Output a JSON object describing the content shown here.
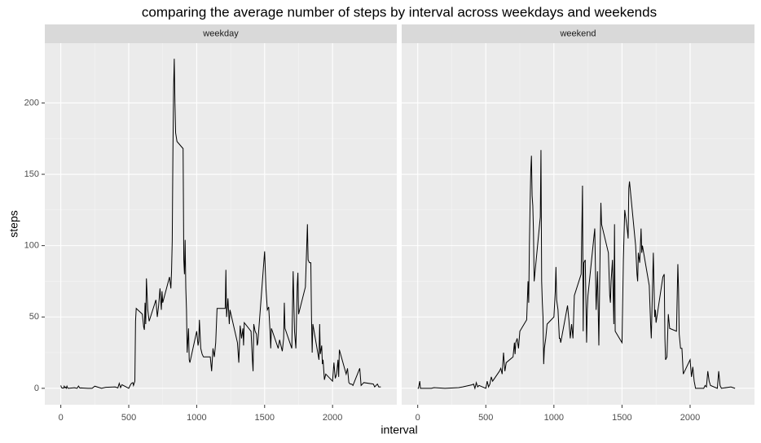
{
  "chart_data": {
    "type": "line",
    "title": "comparing the average number of steps by interval across weekdays and weekends",
    "x_label": "interval",
    "y_label": "steps",
    "xlim": [
      -117.75,
      2472.75
    ],
    "ylim": [
      -11.5,
      241.9
    ],
    "xticks": [
      0,
      500,
      1000,
      1500,
      2000
    ],
    "yticks": [
      0,
      50,
      100,
      150,
      200
    ],
    "grid": true,
    "color": "#000000",
    "series": [
      {
        "name": "weekday",
        "x": [
          0,
          5,
          10,
          15,
          20,
          25,
          30,
          35,
          40,
          45,
          50,
          55,
          100,
          110,
          120,
          130,
          140,
          150,
          200,
          230,
          250,
          300,
          330,
          400,
          420,
          430,
          440,
          450,
          500,
          510,
          520,
          530,
          535,
          545,
          550,
          555,
          600,
          610,
          615,
          620,
          625,
          630,
          640,
          650,
          700,
          710,
          720,
          730,
          740,
          745,
          750,
          800,
          810,
          815,
          820,
          825,
          830,
          835,
          840,
          845,
          850,
          855,
          900,
          905,
          910,
          915,
          920,
          925,
          930,
          940,
          945,
          950,
          1000,
          1010,
          1015,
          1020,
          1030,
          1040,
          1050,
          1100,
          1110,
          1120,
          1130,
          1140,
          1150,
          1200,
          1210,
          1215,
          1220,
          1230,
          1240,
          1245,
          1300,
          1310,
          1320,
          1330,
          1340,
          1345,
          1350,
          1400,
          1410,
          1415,
          1420,
          1430,
          1440,
          1445,
          1450,
          1500,
          1510,
          1520,
          1530,
          1540,
          1545,
          1550,
          1600,
          1610,
          1620,
          1630,
          1640,
          1645,
          1650,
          1700,
          1710,
          1720,
          1730,
          1740,
          1745,
          1750,
          1800,
          1810,
          1815,
          1820,
          1830,
          1840,
          1845,
          1850,
          1855,
          1900,
          1905,
          1910,
          1920,
          1925,
          1930,
          1940,
          1950,
          2000,
          2010,
          2020,
          2030,
          2040,
          2045,
          2050,
          2100,
          2110,
          2120,
          2130,
          2140,
          2150,
          2200,
          2210,
          2230,
          2300,
          2310,
          2330,
          2340,
          2355
        ],
        "values": [
          2,
          0.5,
          0.2,
          0.2,
          0.1,
          1.5,
          0.5,
          0.8,
          0,
          1.5,
          0.4,
          0,
          0.4,
          0.2,
          0,
          1.6,
          0.2,
          0.3,
          0,
          0,
          1.5,
          0,
          0.7,
          1,
          0.3,
          3.5,
          0.5,
          2.5,
          0,
          2,
          3.5,
          4,
          2,
          5,
          47,
          56,
          52,
          43,
          41,
          60,
          45,
          77,
          55,
          47,
          62,
          50,
          58,
          70,
          55,
          68,
          60,
          78,
          70,
          82,
          103,
          165,
          210,
          231,
          200,
          179,
          176,
          173,
          168,
          90,
          80,
          104,
          70,
          55,
          25,
          42,
          20,
          18,
          40,
          30,
          33,
          48,
          28,
          24,
          22,
          22,
          12,
          28,
          22,
          32,
          56,
          56,
          56,
          83,
          50,
          63,
          45,
          55,
          32,
          18,
          44,
          35,
          42,
          30,
          46,
          40,
          20,
          12,
          45,
          40,
          38,
          30,
          32,
          96,
          70,
          55,
          57,
          40,
          28,
          42,
          28,
          34,
          30,
          26,
          35,
          60,
          42,
          28,
          82,
          40,
          28,
          72,
          81,
          52,
          71,
          100,
          115,
          90,
          88,
          88,
          50,
          25,
          45,
          20,
          45,
          24,
          30,
          17,
          20,
          6,
          10,
          5,
          18,
          7,
          10,
          20,
          8,
          27,
          10,
          14,
          4,
          3,
          3,
          2,
          14,
          2,
          4,
          3,
          1,
          3,
          1,
          1
        ]
      },
      {
        "name": "weekend",
        "x": [
          0,
          5,
          15,
          20,
          30,
          100,
          120,
          200,
          300,
          330,
          400,
          410,
          420,
          430,
          440,
          450,
          500,
          510,
          520,
          530,
          540,
          550,
          600,
          610,
          620,
          630,
          640,
          650,
          700,
          710,
          715,
          720,
          730,
          740,
          750,
          800,
          810,
          815,
          820,
          825,
          830,
          835,
          840,
          845,
          850,
          855,
          900,
          905,
          910,
          915,
          920,
          925,
          930,
          940,
          950,
          1000,
          1010,
          1015,
          1020,
          1030,
          1040,
          1045,
          1050,
          1100,
          1110,
          1120,
          1130,
          1140,
          1150,
          1200,
          1210,
          1215,
          1220,
          1230,
          1240,
          1245,
          1250,
          1300,
          1310,
          1315,
          1320,
          1330,
          1340,
          1345,
          1350,
          1400,
          1410,
          1415,
          1420,
          1430,
          1440,
          1445,
          1450,
          1500,
          1510,
          1520,
          1530,
          1540,
          1545,
          1550,
          1555,
          1600,
          1610,
          1615,
          1620,
          1630,
          1640,
          1645,
          1650,
          1700,
          1710,
          1715,
          1720,
          1730,
          1740,
          1745,
          1750,
          1800,
          1810,
          1815,
          1820,
          1830,
          1840,
          1850,
          1900,
          1910,
          1915,
          1920,
          1930,
          1940,
          1950,
          2000,
          2010,
          2020,
          2030,
          2040,
          2100,
          2110,
          2120,
          2130,
          2140,
          2150,
          2200,
          2210,
          2220,
          2230,
          2300,
          2330
        ],
        "values": [
          0,
          0,
          5,
          0,
          0,
          0,
          0.5,
          0,
          0.5,
          1,
          2.5,
          3,
          0,
          4,
          1,
          2,
          0,
          5,
          1,
          3,
          8,
          5,
          12,
          14,
          10,
          25,
          12,
          18,
          22,
          32,
          24,
          32,
          35,
          28,
          40,
          48,
          75,
          60,
          100,
          128,
          152,
          163,
          135,
          128,
          110,
          75,
          120,
          167,
          75,
          60,
          50,
          17,
          28,
          35,
          45,
          50,
          68,
          85,
          62,
          55,
          35,
          35,
          32,
          58,
          48,
          35,
          45,
          35,
          65,
          80,
          142,
          40,
          88,
          90,
          32,
          55,
          65,
          112,
          55,
          68,
          82,
          30,
          102,
          130,
          115,
          95,
          65,
          60,
          75,
          90,
          45,
          115,
          40,
          32,
          90,
          125,
          118,
          110,
          105,
          140,
          145,
          100,
          80,
          75,
          95,
          88,
          112,
          95,
          100,
          72,
          45,
          35,
          55,
          95,
          50,
          55,
          46,
          78,
          80,
          35,
          20,
          22,
          52,
          42,
          40,
          87,
          70,
          38,
          28,
          28,
          10,
          20,
          8,
          15,
          5,
          0,
          0,
          2,
          1,
          12,
          5,
          2,
          0,
          12,
          2,
          0,
          1,
          0
        ]
      }
    ]
  }
}
